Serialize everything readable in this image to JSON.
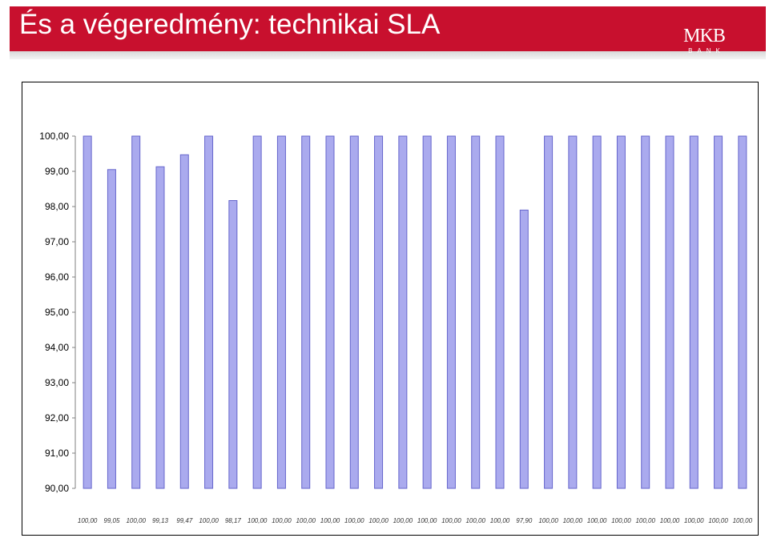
{
  "header": {
    "title": "És a végeredmény: technikai SLA",
    "logo_mark": "MKB",
    "logo_sub": "BANK"
  },
  "colors": {
    "header_bg": "#c8102e",
    "bar_fill": "#aaaaee",
    "bar_stroke": "#6666cc"
  },
  "chart_data": {
    "type": "bar",
    "ylim": [
      90,
      100
    ],
    "yticks": [
      "100,00",
      "99,00",
      "98,00",
      "97,00",
      "96,00",
      "95,00",
      "94,00",
      "93,00",
      "92,00",
      "91,00",
      "90,00"
    ],
    "grid": false,
    "values": [
      100.0,
      99.05,
      100.0,
      99.13,
      99.47,
      100.0,
      98.17,
      100.0,
      100.0,
      100.0,
      100.0,
      100.0,
      100.0,
      100.0,
      100.0,
      100.0,
      100.0,
      100.0,
      97.9,
      100.0,
      100.0,
      100.0,
      100.0,
      100.0,
      100.0,
      100.0,
      100.0,
      100.0
    ],
    "value_labels": [
      "100,00",
      "99,05",
      "100,00",
      "99,13",
      "99,47",
      "100,00",
      "98,17",
      "100,00",
      "100,00",
      "100,00",
      "100,00",
      "100,00",
      "100,00",
      "100,00",
      "100,00",
      "100,00",
      "100,00",
      "100,00",
      "97,90",
      "100,00",
      "100,00",
      "100,00",
      "100,00",
      "100,00",
      "100,00",
      "100,00",
      "100,00",
      "100,00"
    ]
  }
}
